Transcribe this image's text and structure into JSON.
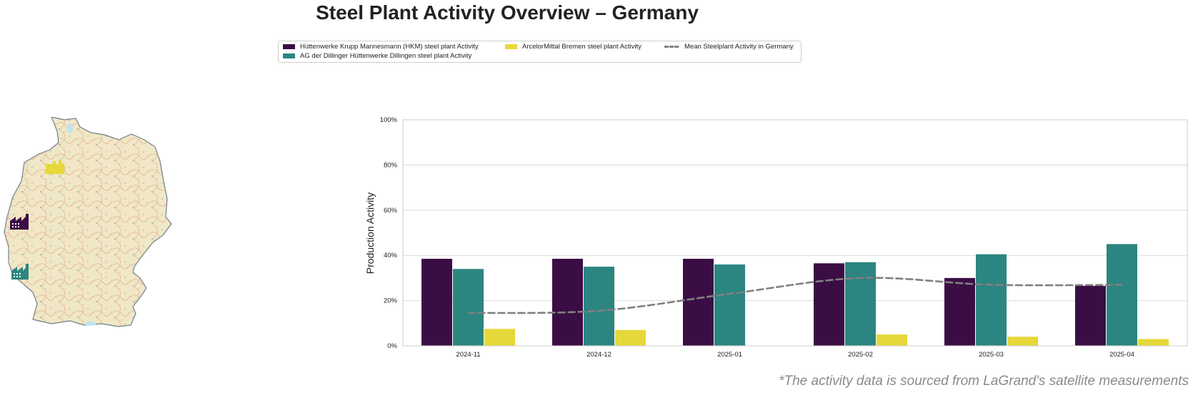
{
  "title": "Steel Plant Activity Overview – Germany",
  "footer_note": "*The activity data is sourced from LaGrand's satellite measurements",
  "map": {
    "icons": [
      {
        "name": "arcelormittal-bremen-factory-icon",
        "color": "#e6d83a"
      },
      {
        "name": "hkm-factory-icon",
        "color": "#3b0d45"
      },
      {
        "name": "dillingen-factory-icon",
        "color": "#2c8580"
      }
    ]
  },
  "chart_data": {
    "type": "bar",
    "categories": [
      "2024-11",
      "2024-12",
      "2025-01",
      "2025-02",
      "2025-03",
      "2025-04"
    ],
    "ylabel": "Production Activity",
    "xlabel": "",
    "ylim": [
      0,
      100
    ],
    "yticks": [
      "0%",
      "20%",
      "40%",
      "60%",
      "80%",
      "100%"
    ],
    "grid": true,
    "legend_position": "top-center",
    "series": [
      {
        "name": "Hüttenwerke Krupp Mannesmann (HKM) steel plant Activity",
        "type": "bar",
        "color": "#3b0d45",
        "values": [
          38.5,
          38.5,
          38.5,
          36.5,
          30,
          26.5
        ]
      },
      {
        "name": "AG der Dillinger Hüttenwerke Dillingen steel plant Activity",
        "type": "bar",
        "color": "#2c8580",
        "values": [
          34,
          35,
          36,
          37,
          40.5,
          45
        ]
      },
      {
        "name": "ArcelorMittal Bremen steel plant Activity",
        "type": "bar",
        "color": "#e6d83a",
        "values": [
          7.5,
          7,
          0,
          5,
          4,
          3
        ]
      },
      {
        "name": "Mean Steelplant Activity in Germany",
        "type": "line",
        "color": "#808080",
        "values": [
          14.5,
          15.5,
          23,
          30,
          27,
          27
        ]
      }
    ]
  }
}
